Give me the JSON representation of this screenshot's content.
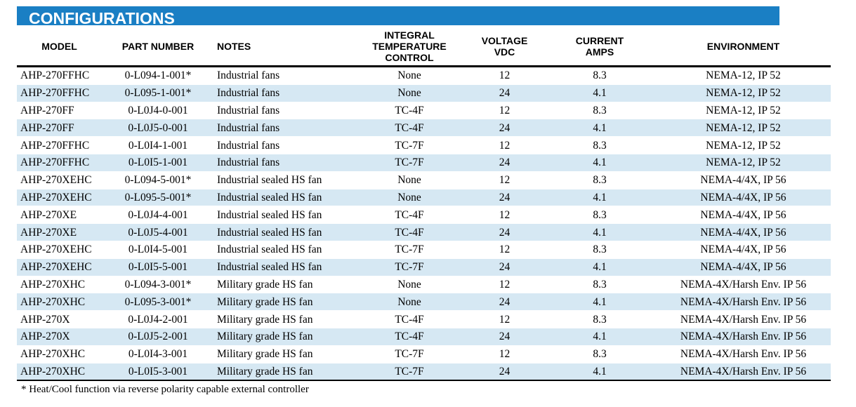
{
  "title": "CONFIGURATIONS",
  "colors": {
    "banner": "#1a7fc4",
    "row_alt": "#d6e8f3"
  },
  "columns": {
    "model": "MODEL",
    "part_number": "PART NUMBER",
    "notes": "NOTES",
    "itc_line1": "INTEGRAL",
    "itc_line2": "TEMPERATURE",
    "itc_line3": "CONTROL",
    "voltage_line1": "VOLTAGE",
    "voltage_line2": "VDC",
    "current_line1": "CURRENT",
    "current_line2": "AMPS",
    "environment": "ENVIRONMENT"
  },
  "rows": [
    {
      "model": "AHP-270FFHC",
      "part": "0-L094-1-001*",
      "notes": "Industrial fans",
      "itc": "None",
      "voltage": "12",
      "current": "8.3",
      "env": "NEMA-12, IP 52"
    },
    {
      "model": "AHP-270FFHC",
      "part": "0-L095-1-001*",
      "notes": "Industrial fans",
      "itc": "None",
      "voltage": "24",
      "current": "4.1",
      "env": "NEMA-12, IP 52"
    },
    {
      "model": "AHP-270FF",
      "part": "0-L0J4-0-001",
      "notes": "Industrial fans",
      "itc": "TC-4F",
      "voltage": "12",
      "current": "8.3",
      "env": "NEMA-12, IP 52"
    },
    {
      "model": "AHP-270FF",
      "part": "0-L0J5-0-001",
      "notes": "Industrial fans",
      "itc": "TC-4F",
      "voltage": "24",
      "current": "4.1",
      "env": "NEMA-12, IP 52"
    },
    {
      "model": "AHP-270FFHC",
      "part": "0-L0I4-1-001",
      "notes": "Industrial fans",
      "itc": "TC-7F",
      "voltage": "12",
      "current": "8.3",
      "env": "NEMA-12, IP 52"
    },
    {
      "model": "AHP-270FFHC",
      "part": "0-L0I5-1-001",
      "notes": "Industrial fans",
      "itc": "TC-7F",
      "voltage": "24",
      "current": "4.1",
      "env": "NEMA-12, IP 52"
    },
    {
      "model": "AHP-270XEHC",
      "part": "0-L094-5-001*",
      "notes": "Industrial sealed HS fan",
      "itc": "None",
      "voltage": "12",
      "current": "8.3",
      "env": "NEMA-4/4X, IP 56"
    },
    {
      "model": "AHP-270XEHC",
      "part": "0-L095-5-001*",
      "notes": "Industrial sealed HS fan",
      "itc": "None",
      "voltage": "24",
      "current": "4.1",
      "env": "NEMA-4/4X, IP 56"
    },
    {
      "model": "AHP-270XE",
      "part": "0-L0J4-4-001",
      "notes": "Industrial sealed HS fan",
      "itc": "TC-4F",
      "voltage": "12",
      "current": "8.3",
      "env": "NEMA-4/4X, IP 56"
    },
    {
      "model": "AHP-270XE",
      "part": "0-L0J5-4-001",
      "notes": "Industrial sealed HS fan",
      "itc": "TC-4F",
      "voltage": "24",
      "current": "4.1",
      "env": "NEMA-4/4X, IP 56"
    },
    {
      "model": "AHP-270XEHC",
      "part": "0-L0I4-5-001",
      "notes": "Industrial sealed HS fan",
      "itc": "TC-7F",
      "voltage": "12",
      "current": "8.3",
      "env": "NEMA-4/4X, IP 56"
    },
    {
      "model": "AHP-270XEHC",
      "part": "0-L0I5-5-001",
      "notes": "Industrial sealed HS fan",
      "itc": "TC-7F",
      "voltage": "24",
      "current": "4.1",
      "env": "NEMA-4/4X, IP 56"
    },
    {
      "model": "AHP-270XHC",
      "part": "0-L094-3-001*",
      "notes": "Military grade HS fan",
      "itc": "None",
      "voltage": "12",
      "current": "8.3",
      "env": "NEMA-4X/Harsh Env. IP 56"
    },
    {
      "model": "AHP-270XHC",
      "part": "0-L095-3-001*",
      "notes": "Military grade HS fan",
      "itc": "None",
      "voltage": "24",
      "current": "4.1",
      "env": "NEMA-4X/Harsh Env. IP 56"
    },
    {
      "model": "AHP-270X",
      "part": "0-L0J4-2-001",
      "notes": "Military grade HS fan",
      "itc": "TC-4F",
      "voltage": "12",
      "current": "8.3",
      "env": "NEMA-4X/Harsh Env. IP 56"
    },
    {
      "model": "AHP-270X",
      "part": "0-L0J5-2-001",
      "notes": "Military grade HS fan",
      "itc": "TC-4F",
      "voltage": "24",
      "current": "4.1",
      "env": "NEMA-4X/Harsh Env. IP 56"
    },
    {
      "model": "AHP-270XHC",
      "part": "0-L0I4-3-001",
      "notes": "Military grade HS fan",
      "itc": "TC-7F",
      "voltage": "12",
      "current": "8.3",
      "env": "NEMA-4X/Harsh Env. IP 56"
    },
    {
      "model": "AHP-270XHC",
      "part": "0-L0I5-3-001",
      "notes": "Military grade HS fan",
      "itc": "TC-7F",
      "voltage": "24",
      "current": "4.1",
      "env": "NEMA-4X/Harsh Env. IP 56"
    }
  ],
  "footnote": "* Heat/Cool function via reverse polarity capable external controller"
}
